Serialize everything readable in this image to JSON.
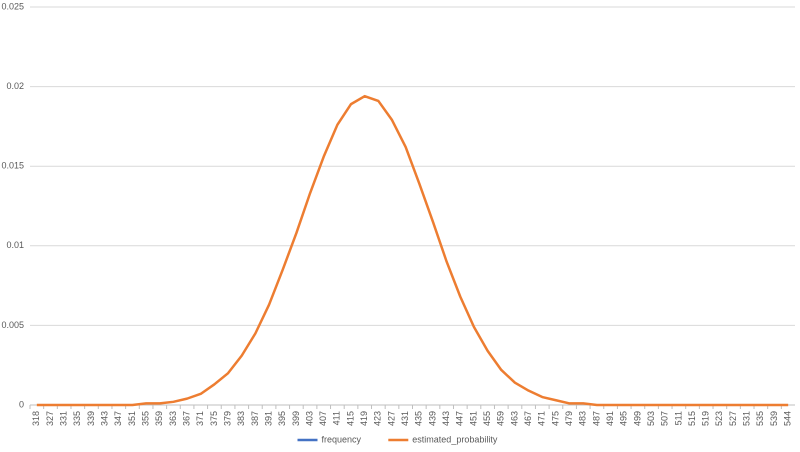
{
  "chart_data": {
    "type": "line",
    "categories": [
      "318",
      "327",
      "331",
      "335",
      "339",
      "343",
      "347",
      "351",
      "355",
      "359",
      "363",
      "367",
      "371",
      "375",
      "379",
      "383",
      "387",
      "391",
      "395",
      "399",
      "403",
      "407",
      "411",
      "415",
      "419",
      "423",
      "427",
      "431",
      "435",
      "439",
      "443",
      "447",
      "451",
      "455",
      "459",
      "463",
      "467",
      "471",
      "475",
      "479",
      "483",
      "487",
      "491",
      "495",
      "499",
      "503",
      "507",
      "511",
      "515",
      "519",
      "523",
      "527",
      "531",
      "535",
      "539",
      "544"
    ],
    "series": [
      {
        "name": "frequency",
        "color": "#4472c4",
        "values": [
          null,
          null,
          null,
          null,
          null,
          null,
          null,
          null,
          null,
          null,
          null,
          null,
          null,
          null,
          null,
          null,
          null,
          null,
          null,
          null,
          null,
          null,
          null,
          null,
          null,
          null,
          null,
          null,
          null,
          null,
          null,
          null,
          null,
          null,
          null,
          null,
          null,
          null,
          null,
          null,
          null,
          null,
          null,
          null,
          null,
          null,
          null,
          null,
          null,
          null,
          null,
          null,
          null,
          null,
          null,
          null
        ]
      },
      {
        "name": "estimated_probability",
        "color": "#ed7d31",
        "values": [
          0,
          0,
          0,
          0,
          0,
          0,
          0,
          0,
          0.0001,
          0.0001,
          0.0002,
          0.0004,
          0.0007,
          0.0013,
          0.002,
          0.0031,
          0.0045,
          0.0063,
          0.0085,
          0.0108,
          0.0133,
          0.0156,
          0.0176,
          0.0189,
          0.0194,
          0.0191,
          0.0179,
          0.0162,
          0.0139,
          0.0115,
          0.009,
          0.0068,
          0.0049,
          0.0034,
          0.0022,
          0.0014,
          0.0009,
          0.0005,
          0.0003,
          0.0001,
          0.0001,
          0,
          0,
          0,
          0,
          0,
          0,
          0,
          0,
          0,
          0,
          0,
          0,
          0,
          0,
          0
        ]
      }
    ],
    "ylim": [
      0,
      0.025
    ],
    "yticks": [
      0,
      0.005,
      0.01,
      0.015,
      0.02,
      0.025
    ],
    "grid": true,
    "legend": "bottom"
  }
}
